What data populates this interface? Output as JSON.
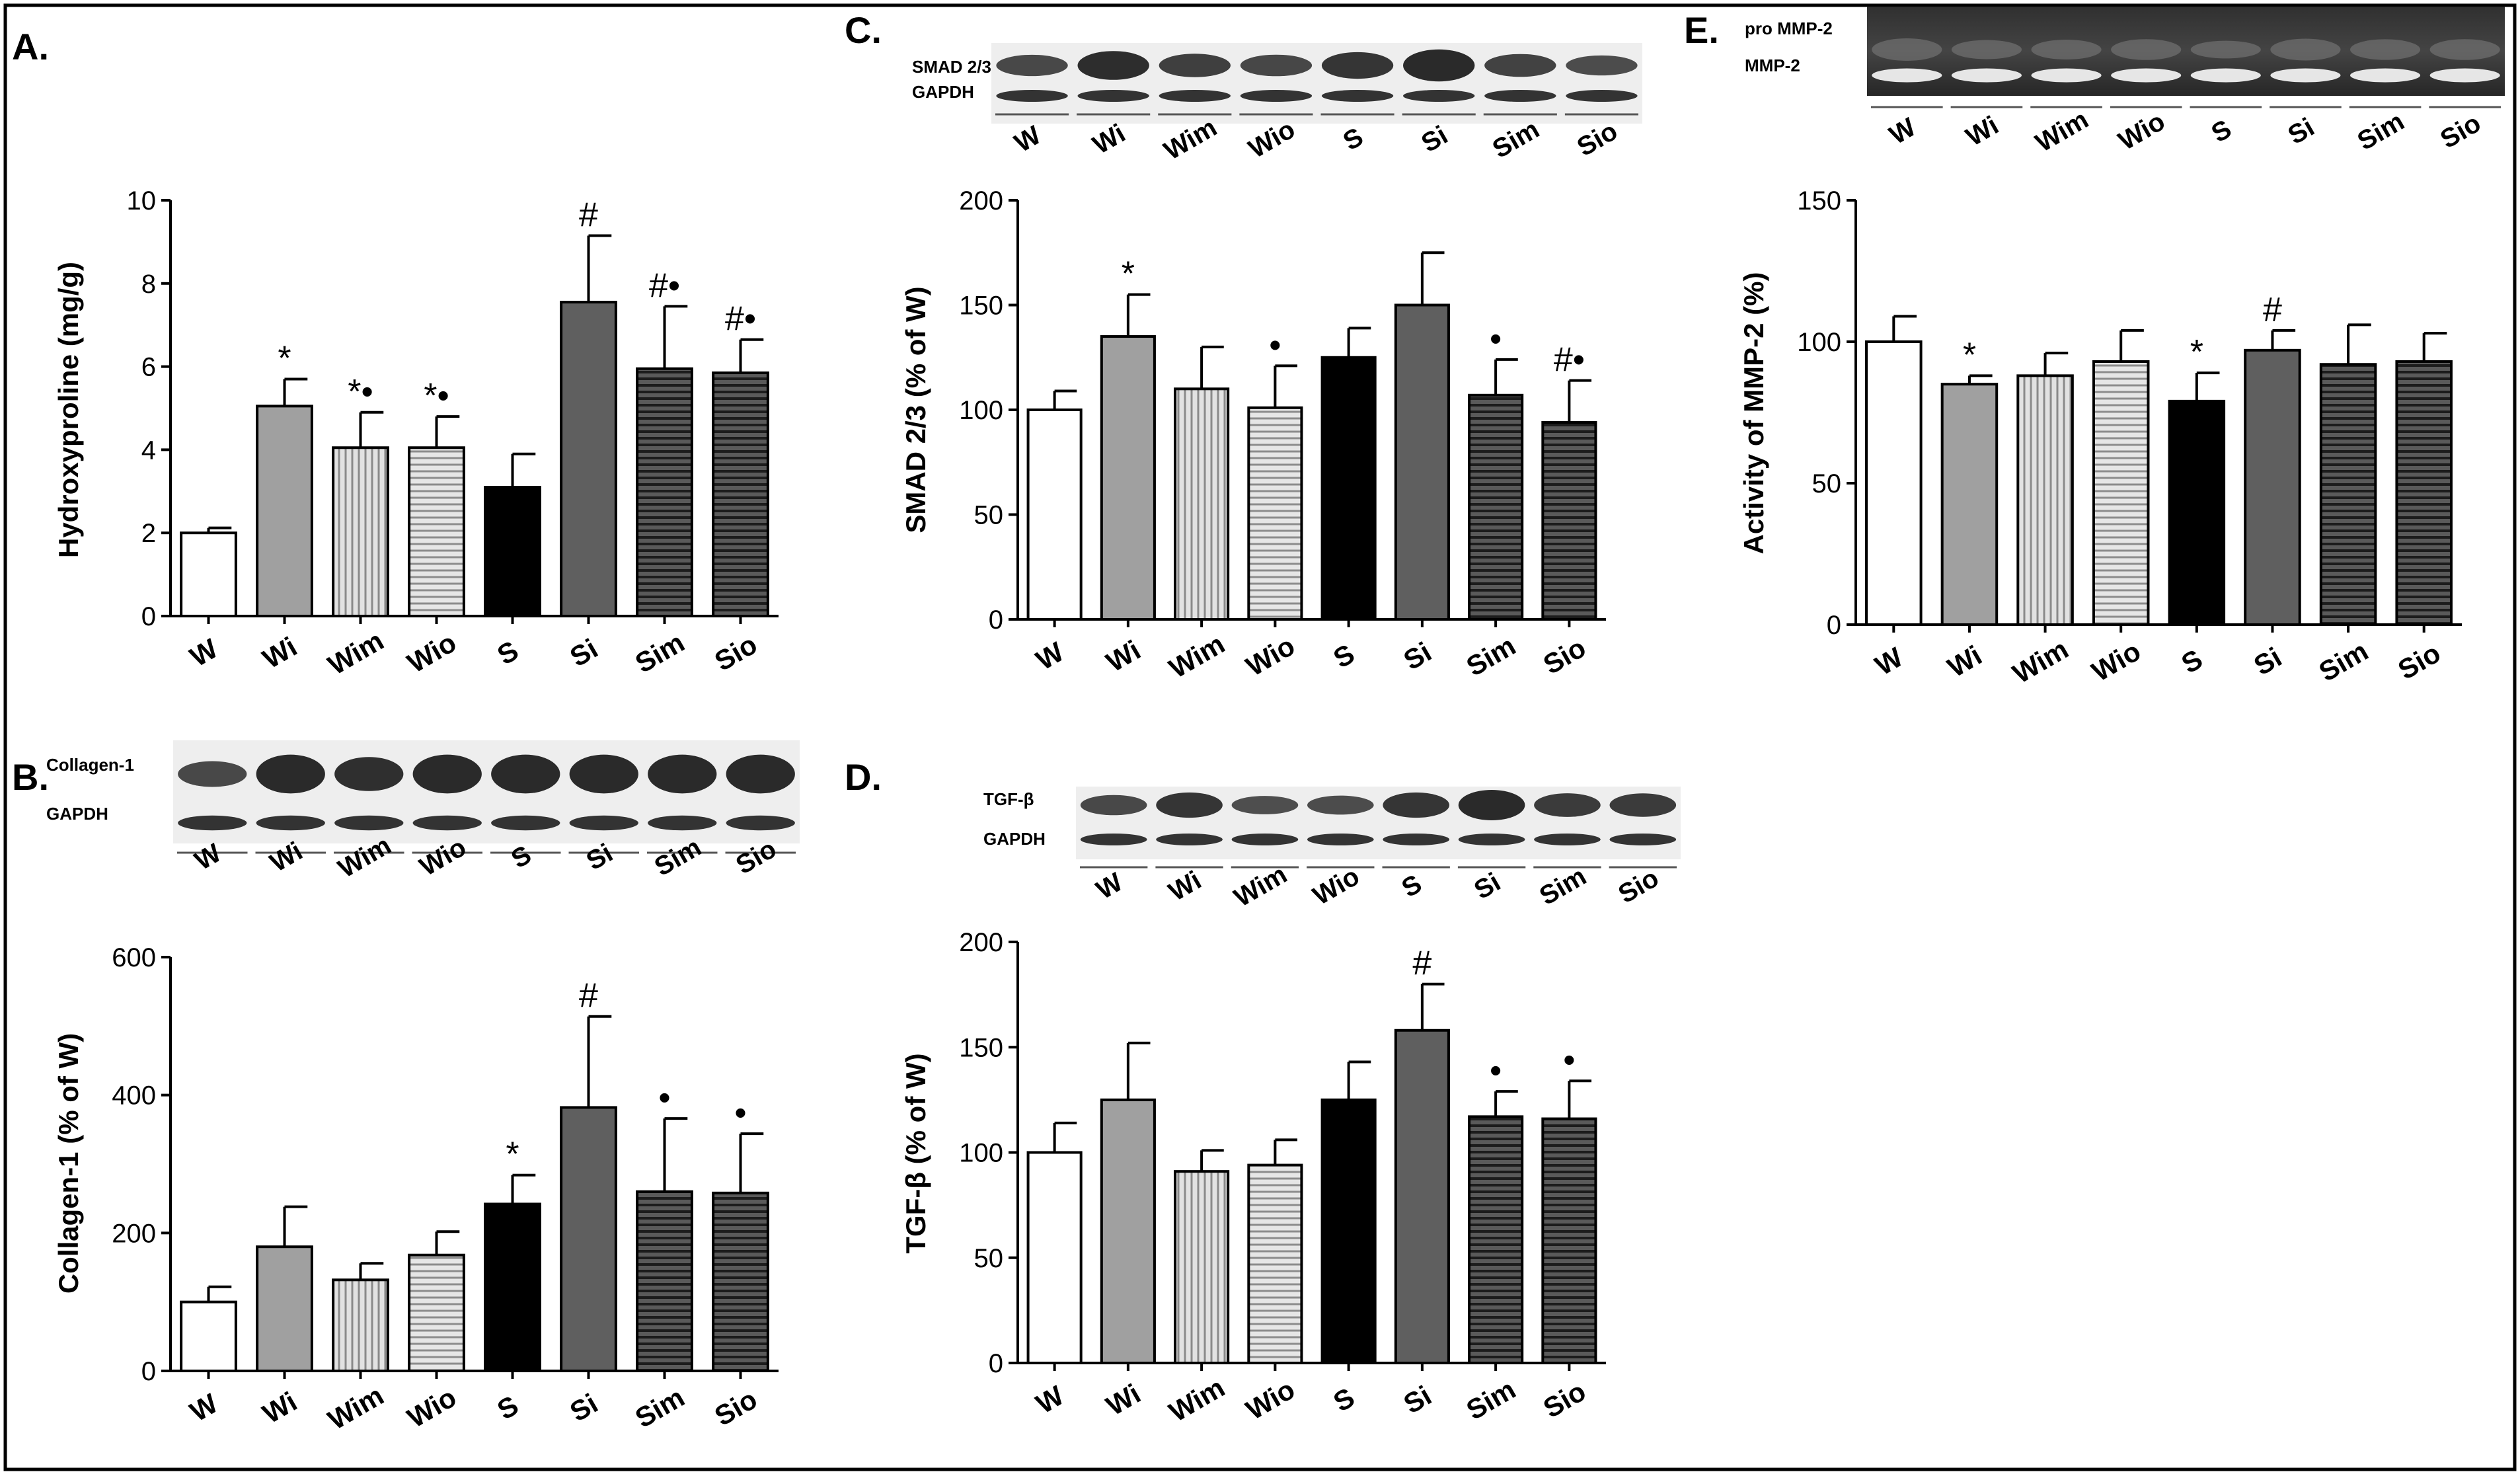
{
  "figure": {
    "colors": {
      "W": "#ffffff",
      "Wi": "#a0a0a0",
      "Wim": "#d9d9d9",
      "Wio": "#d0d0d0",
      "S": "#000000",
      "Si": "#5f5f5f",
      "Sim": "#3e3e3e",
      "Sio": "#3e3e3e"
    },
    "patterns": {
      "W": "none",
      "Wi": "none",
      "Wim": "vertical",
      "Wio": "horizontal",
      "S": "none",
      "Si": "none",
      "Sim": "horizontal",
      "Sio": "horizontal"
    }
  },
  "chart_data": [
    {
      "panel": "A",
      "label": "A.",
      "type": "bar",
      "categories": [
        "W",
        "Wi",
        "Wim",
        "Wio",
        "S",
        "Si",
        "Sim",
        "Sio"
      ],
      "values": [
        2.0,
        5.05,
        4.05,
        4.05,
        3.1,
        7.55,
        5.95,
        5.85
      ],
      "errors": [
        0.12,
        0.65,
        0.85,
        0.75,
        0.8,
        1.6,
        1.5,
        0.8
      ],
      "annotations": [
        "",
        "*",
        "*•",
        "*•",
        "",
        "#",
        "#•",
        "#•"
      ],
      "ylabel": "Hydroxyproline (mg/g)",
      "ylim": [
        0,
        10
      ],
      "yticks": [
        0,
        2,
        4,
        6,
        8,
        10
      ],
      "xlabel": ""
    },
    {
      "panel": "B",
      "label": "B.",
      "type": "bar",
      "categories": [
        "W",
        "Wi",
        "Wim",
        "Wio",
        "S",
        "Si",
        "Sim",
        "Sio"
      ],
      "values": [
        100,
        180,
        132,
        168,
        242,
        382,
        260,
        258
      ],
      "errors": [
        22,
        58,
        24,
        34,
        42,
        132,
        106,
        86
      ],
      "annotations": [
        "",
        "",
        "",
        "",
        "*",
        "#",
        "•",
        "•"
      ],
      "ylabel": "Collagen-1 (% of W)",
      "ylim": [
        0,
        600
      ],
      "yticks": [
        0,
        200,
        400,
        600
      ],
      "xlabel": "",
      "blot": {
        "rows": [
          "Collagen-1",
          "GAPDH"
        ],
        "lanes": [
          "W",
          "Wi",
          "Wim",
          "Wio",
          "S",
          "Si",
          "Sim",
          "Sio"
        ]
      }
    },
    {
      "panel": "C",
      "label": "C.",
      "type": "bar",
      "categories": [
        "W",
        "Wi",
        "Wim",
        "Wio",
        "S",
        "Si",
        "Sim",
        "Sio"
      ],
      "values": [
        100,
        135,
        110,
        101,
        125,
        150,
        107,
        94
      ],
      "errors": [
        9,
        20,
        20,
        20,
        14,
        25,
        17,
        20
      ],
      "annotations": [
        "",
        "*",
        "",
        "•",
        "",
        "",
        "•",
        "#•"
      ],
      "ylabel": "SMAD 2/3 (% of W)",
      "ylim": [
        0,
        200
      ],
      "yticks": [
        0,
        50,
        100,
        150,
        200
      ],
      "xlabel": "",
      "blot": {
        "rows": [
          "SMAD 2/3",
          "GAPDH"
        ],
        "lanes": [
          "W",
          "Wi",
          "Wim",
          "Wio",
          "S",
          "Si",
          "Sim",
          "Sio"
        ]
      }
    },
    {
      "panel": "D",
      "label": "D.",
      "type": "bar",
      "categories": [
        "W",
        "Wi",
        "Wim",
        "Wio",
        "S",
        "Si",
        "Sim",
        "Sio"
      ],
      "values": [
        100,
        125,
        91,
        94,
        125,
        158,
        117,
        116
      ],
      "errors": [
        14,
        27,
        10,
        12,
        18,
        22,
        12,
        18
      ],
      "annotations": [
        "",
        "",
        "",
        "",
        "",
        "#",
        "•",
        "•"
      ],
      "ylabel": "TGF-β (% of W)",
      "ylim": [
        0,
        200
      ],
      "yticks": [
        0,
        50,
        100,
        150,
        200
      ],
      "xlabel": "",
      "blot": {
        "rows": [
          "TGF-β",
          "GAPDH"
        ],
        "lanes": [
          "W",
          "Wi",
          "Wim",
          "Wio",
          "S",
          "Si",
          "Sim",
          "Sio"
        ]
      }
    },
    {
      "panel": "E",
      "label": "E.",
      "type": "bar",
      "categories": [
        "W",
        "Wi",
        "Wim",
        "Wio",
        "S",
        "Si",
        "Sim",
        "Sio"
      ],
      "values": [
        100,
        85,
        88,
        93,
        79,
        97,
        92,
        93
      ],
      "errors": [
        9,
        3,
        8,
        11,
        10,
        7,
        14,
        10
      ],
      "annotations": [
        "",
        "*",
        "",
        "",
        "*",
        "#",
        "",
        ""
      ],
      "ylabel": "Activity of MMP-2 (%)",
      "ylim": [
        0,
        150
      ],
      "yticks": [
        0,
        50,
        100,
        150
      ],
      "xlabel": "",
      "blot": {
        "rows": [
          "pro MMP-2",
          "MMP-2"
        ],
        "lanes": [
          "W",
          "Wi",
          "Wim",
          "Wio",
          "S",
          "Si",
          "Sim",
          "Sio"
        ]
      }
    }
  ]
}
